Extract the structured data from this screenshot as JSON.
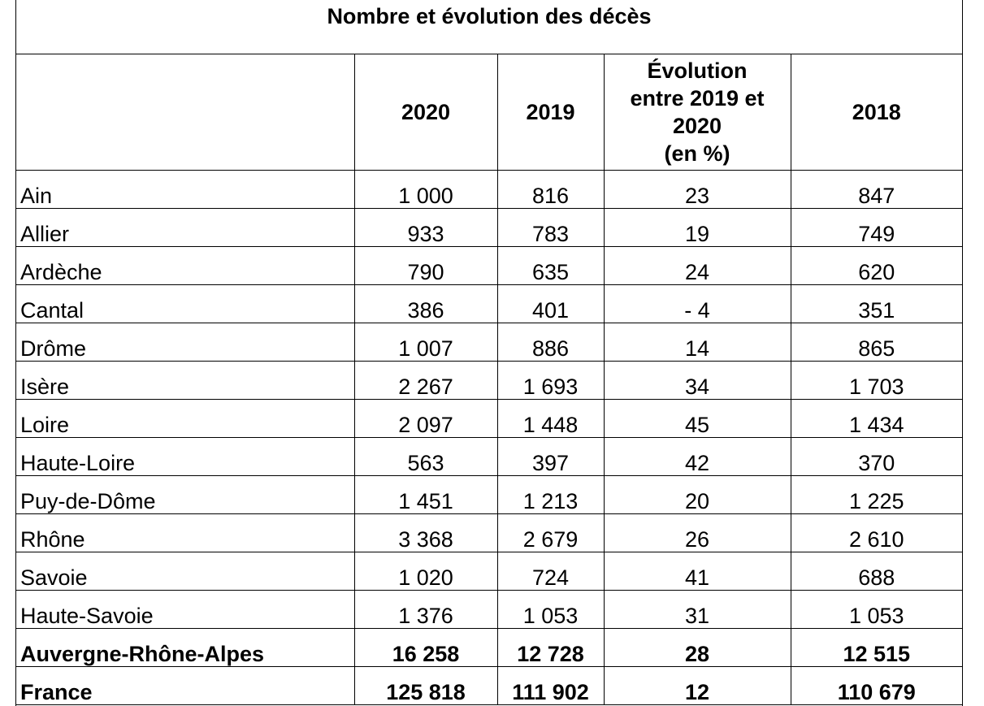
{
  "title": "Nombre et évolution des décès",
  "headers": {
    "col_2020": "2020",
    "col_2019": "2019",
    "evolution_lines": [
      "Évolution",
      "entre 2019 et",
      "2020",
      "(en %)"
    ],
    "col_2018": "2018"
  },
  "rows": [
    {
      "label": "Ain",
      "v2020": "1 000",
      "v2019": "816",
      "evol": "23",
      "v2018": "847"
    },
    {
      "label": "Allier",
      "v2020": "933",
      "v2019": "783",
      "evol": "19",
      "v2018": "749"
    },
    {
      "label": "Ardèche",
      "v2020": "790",
      "v2019": "635",
      "evol": "24",
      "v2018": "620"
    },
    {
      "label": "Cantal",
      "v2020": "386",
      "v2019": "401",
      "evol": "- 4",
      "v2018": "351"
    },
    {
      "label": "Drôme",
      "v2020": "1 007",
      "v2019": "886",
      "evol": "14",
      "v2018": "865"
    },
    {
      "label": "Isère",
      "v2020": "2 267",
      "v2019": "1 693",
      "evol": "34",
      "v2018": "1 703"
    },
    {
      "label": "Loire",
      "v2020": "2 097",
      "v2019": "1 448",
      "evol": "45",
      "v2018": "1 434"
    },
    {
      "label": "Haute-Loire",
      "v2020": "563",
      "v2019": "397",
      "evol": "42",
      "v2018": "370"
    },
    {
      "label": "Puy-de-Dôme",
      "v2020": "1 451",
      "v2019": "1 213",
      "evol": "20",
      "v2018": "1 225"
    },
    {
      "label": "Rhône",
      "v2020": "3 368",
      "v2019": "2 679",
      "evol": "26",
      "v2018": "2 610"
    },
    {
      "label": "Savoie",
      "v2020": "1 020",
      "v2019": "724",
      "evol": "41",
      "v2018": "688"
    },
    {
      "label": "Haute-Savoie",
      "v2020": "1 376",
      "v2019": "1 053",
      "evol": "31",
      "v2018": "1 053"
    },
    {
      "label": "Auvergne-Rhône-Alpes",
      "v2020": "16 258",
      "v2019": "12 728",
      "evol": "28",
      "v2018": "12 515"
    },
    {
      "label": "France",
      "v2020": "125 818",
      "v2019": "111 902",
      "evol": "12",
      "v2018": "110 679"
    }
  ]
}
